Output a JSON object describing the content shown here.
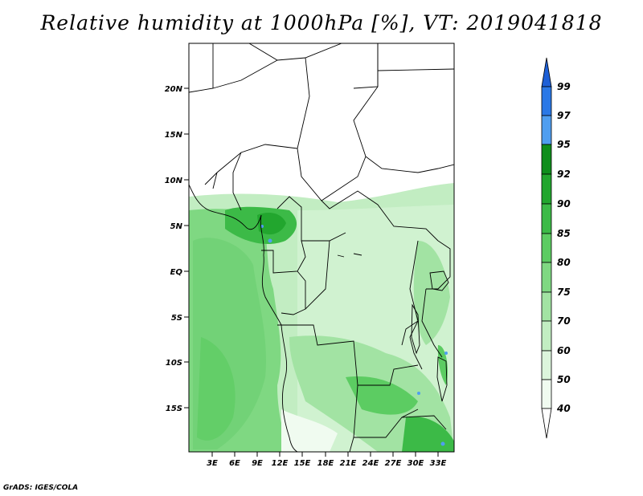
{
  "title": "Relative humidity at 1000hPa [%], VT: 2019041818",
  "credit": "GrADS: IGES/COLA",
  "map": {
    "lat_labels": [
      "20N",
      "15N",
      "10N",
      "5N",
      "EQ",
      "5S",
      "10S",
      "15S"
    ],
    "lon_labels": [
      "3E",
      "6E",
      "9E",
      "12E",
      "15E",
      "18E",
      "21E",
      "24E",
      "27E",
      "30E",
      "33E"
    ]
  },
  "colorbar": {
    "labels": [
      "99",
      "97",
      "95",
      "92",
      "90",
      "85",
      "80",
      "75",
      "70",
      "60",
      "50",
      "40"
    ],
    "colors": {
      "over_99": "#1d5fd6",
      "97_99": "#2a78e6",
      "95_97": "#4f9ef0",
      "92_95": "#0f8e1c",
      "90_92": "#22a62e",
      "85_90": "#3cba47",
      "80_85": "#5ccc62",
      "75_80": "#7fd882",
      "70_75": "#a2e3a3",
      "60_70": "#c2edc2",
      "50_60": "#dcf5dc",
      "40_50": "#f0fbf0"
    }
  }
}
